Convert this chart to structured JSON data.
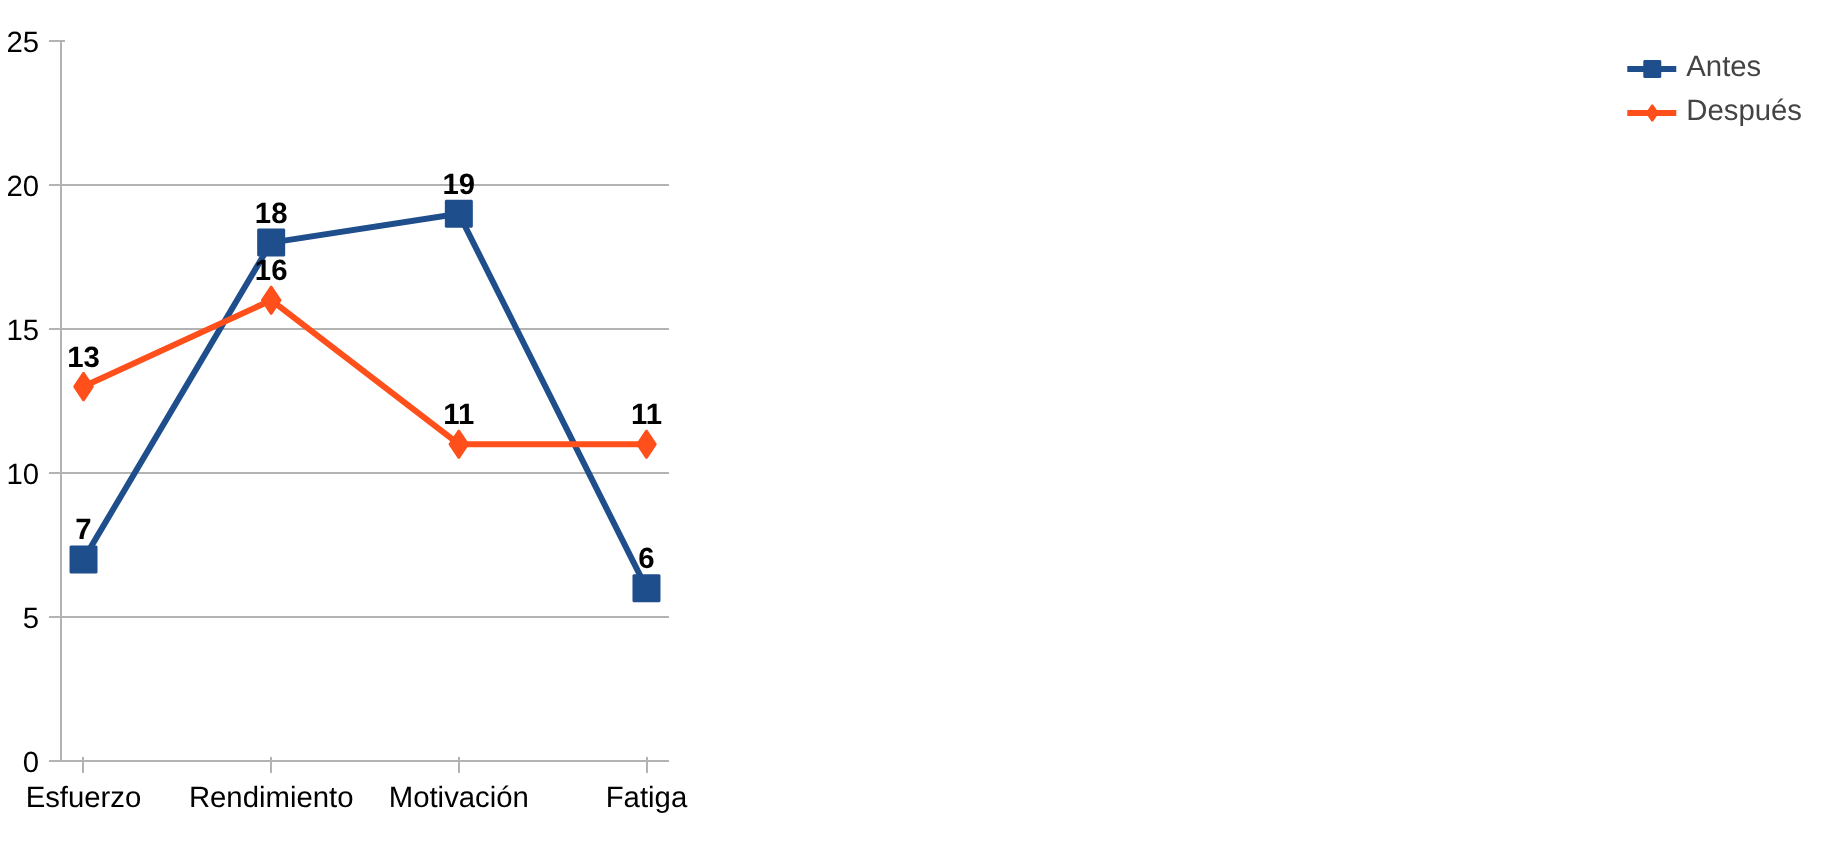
{
  "chart_data": {
    "type": "line",
    "categories": [
      "Esfuerzo",
      "Rendimiento",
      "Motivación",
      "Fatiga"
    ],
    "series": [
      {
        "name": "Antes",
        "color": "#1f4e8c",
        "values": [
          7,
          18,
          19,
          6
        ],
        "marker": "square"
      },
      {
        "name": "Después",
        "color": "#ff4f1a",
        "values": [
          13,
          16,
          11,
          11
        ],
        "marker": "diamond"
      }
    ],
    "ylim": [
      0,
      25
    ],
    "yticks": [
      0,
      5,
      10,
      15,
      20,
      25
    ],
    "grid": "y",
    "legend": "right",
    "data_labels": true,
    "line_style": "solid"
  }
}
